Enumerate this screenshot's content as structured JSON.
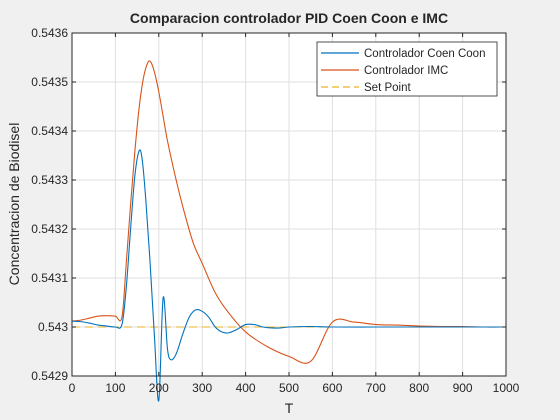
{
  "chart_data": {
    "type": "line",
    "title": "Comparacion controlador PID Coen Coon e IMC",
    "xlabel": "T",
    "ylabel": "Concentracion de Biodisel",
    "xlim": [
      0,
      1000
    ],
    "ylim": [
      0.5429,
      0.5436
    ],
    "xticks": [
      "0",
      "100",
      "200",
      "300",
      "400",
      "500",
      "600",
      "700",
      "800",
      "900",
      "1000"
    ],
    "yticks": [
      "0.5429",
      "0.543",
      "0.5431",
      "0.5432",
      "0.5433",
      "0.5434",
      "0.5435",
      "0.5436"
    ],
    "grid": true,
    "legend_position": "top-right",
    "series": [
      {
        "name": "Controlador Coen Coon",
        "color": "#0072BD",
        "style": "solid",
        "x": [
          0,
          20,
          40,
          60,
          80,
          100,
          115,
          125,
          135,
          145,
          155,
          162,
          170,
          180,
          190,
          200,
          210,
          220,
          228,
          240,
          255,
          270,
          285,
          300,
          315,
          330,
          345,
          360,
          380,
          400,
          420,
          440,
          460,
          480,
          500,
          550,
          600,
          700,
          800,
          900,
          1000
        ],
        "y": [
          0.543012,
          0.543011,
          0.543008,
          0.543004,
          0.543002,
          0.543,
          0.543005,
          0.54308,
          0.5432,
          0.54331,
          0.54336,
          0.54334,
          0.54326,
          0.54313,
          0.54298,
          0.54285,
          0.54306,
          0.542955,
          0.542933,
          0.542945,
          0.542985,
          0.54302,
          0.543035,
          0.543032,
          0.54302,
          0.543,
          0.54299,
          0.542988,
          0.542995,
          0.543005,
          0.543005,
          0.543,
          0.542998,
          0.542998,
          0.543,
          0.543001,
          0.543,
          0.543,
          0.543,
          0.543,
          0.543
        ]
      },
      {
        "name": "Controlador IMC",
        "color": "#D95319",
        "style": "solid",
        "x": [
          0,
          20,
          40,
          60,
          80,
          100,
          115,
          125,
          135,
          145,
          155,
          165,
          175,
          182,
          190,
          200,
          210,
          220,
          240,
          260,
          280,
          300,
          330,
          360,
          400,
          450,
          500,
          550,
          600,
          650,
          700,
          750,
          800,
          850,
          900,
          950,
          1000
        ],
        "y": [
          0.543012,
          0.543014,
          0.543018,
          0.543022,
          0.543023,
          0.543022,
          0.54302,
          0.54313,
          0.54325,
          0.54336,
          0.54345,
          0.54351,
          0.54354,
          0.54354,
          0.54352,
          0.54348,
          0.54343,
          0.54338,
          0.5433,
          0.54323,
          0.54317,
          0.54313,
          0.54307,
          0.54303,
          0.54299,
          0.54296,
          0.54294,
          0.54293,
          0.54301,
          0.54301,
          0.543005,
          0.543004,
          0.543002,
          0.543001,
          0.543001,
          0.543,
          0.543
        ]
      },
      {
        "name": "Set Point",
        "color": "#EDB120",
        "style": "dashed",
        "x": [
          0,
          1000
        ],
        "y": [
          0.543,
          0.543
        ]
      }
    ]
  }
}
